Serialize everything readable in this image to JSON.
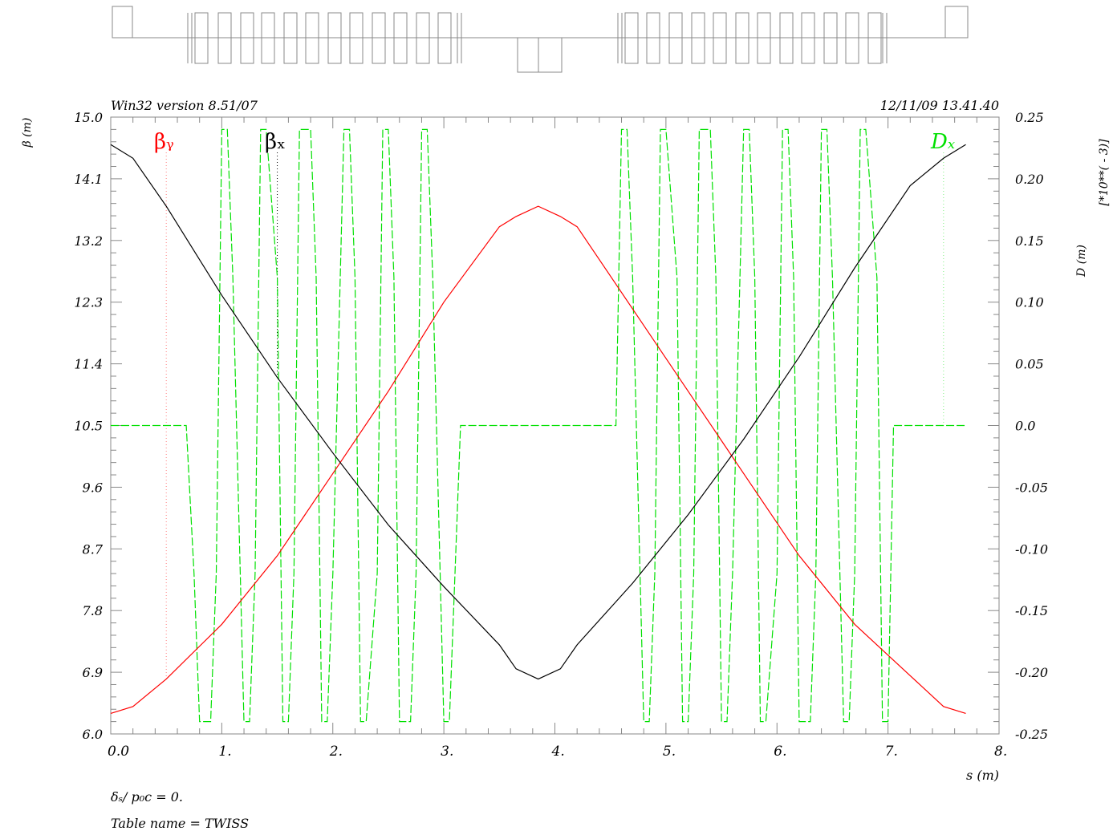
{
  "header": {
    "left": "Win32 version 8.51/07",
    "right": "12/11/09  13.41.40"
  },
  "footer": {
    "line1": "δₛ/ p₀c  =  0.",
    "line2": "Table name = TWISS"
  },
  "axis_labels": {
    "left": "β (m)",
    "right_d": "D (m)",
    "right_units": "[*10**( - 3)]",
    "x": "s (m)"
  },
  "legend": {
    "beta_y": "βᵧ",
    "beta_x": "βₓ",
    "d_x": "Dₓ"
  },
  "colors": {
    "beta_x": "#000000",
    "beta_y": "#ff0000",
    "d_x": "#00e000"
  },
  "chart_data": {
    "type": "line",
    "x_ticks": [
      "0.0",
      "1.",
      "2.",
      "3.",
      "4.",
      "5.",
      "6.",
      "7.",
      "8."
    ],
    "y_left_ticks": [
      "6.0",
      "6.9",
      "7.8",
      "8.7",
      "9.6",
      "10.5",
      "11.4",
      "12.3",
      "13.2",
      "14.1",
      "15.0"
    ],
    "y_right_ticks": [
      "-0.25",
      "-0.20",
      "-0.15",
      "-0.10",
      "-0.05",
      "0.0",
      "0.05",
      "0.10",
      "0.15",
      "0.20",
      "0.25"
    ],
    "xlim": [
      0,
      8
    ],
    "ylim_left": [
      6.0,
      15.0
    ],
    "ylim_right": [
      -0.25,
      0.25
    ],
    "series": [
      {
        "name": "βₓ",
        "axis": "left",
        "x": [
          0,
          0.2,
          0.5,
          1.0,
          1.5,
          2.0,
          2.5,
          3.0,
          3.5,
          3.65,
          3.85,
          4.05,
          4.2,
          4.7,
          5.2,
          5.7,
          6.2,
          6.7,
          7.2,
          7.5,
          7.7
        ],
        "y": [
          14.6,
          14.4,
          13.7,
          12.4,
          11.2,
          10.1,
          9.05,
          8.15,
          7.3,
          6.95,
          6.8,
          6.95,
          7.3,
          8.2,
          9.2,
          10.3,
          11.5,
          12.8,
          14.0,
          14.4,
          14.6
        ]
      },
      {
        "name": "βᵧ",
        "axis": "left",
        "x": [
          0,
          0.2,
          0.5,
          1.0,
          1.5,
          2.0,
          2.5,
          3.0,
          3.5,
          3.65,
          3.85,
          4.05,
          4.2,
          4.7,
          5.2,
          5.7,
          6.2,
          6.7,
          7.2,
          7.5,
          7.7
        ],
        "y": [
          6.3,
          6.4,
          6.8,
          7.6,
          8.6,
          9.8,
          11.0,
          12.3,
          13.4,
          13.55,
          13.7,
          13.55,
          13.4,
          12.2,
          11.0,
          9.8,
          8.6,
          7.6,
          6.85,
          6.4,
          6.3
        ]
      },
      {
        "name": "Dₓ",
        "axis": "right",
        "x": [
          0,
          0.68,
          0.75,
          0.8,
          0.9,
          0.95,
          1.0,
          1.05,
          1.1,
          1.2,
          1.25,
          1.3,
          1.35,
          1.4,
          1.5,
          1.55,
          1.6,
          1.65,
          1.7,
          1.8,
          1.85,
          1.9,
          1.95,
          2.0,
          2.1,
          2.15,
          2.2,
          2.25,
          2.3,
          2.4,
          2.45,
          2.5,
          2.55,
          2.6,
          2.7,
          2.75,
          2.8,
          2.85,
          2.9,
          3.0,
          3.05,
          3.1,
          3.15,
          3.6,
          4.2,
          4.55,
          4.6,
          4.65,
          4.7,
          4.8,
          4.85,
          4.9,
          4.95,
          5.0,
          5.1,
          5.15,
          5.2,
          5.25,
          5.3,
          5.4,
          5.45,
          5.5,
          5.55,
          5.6,
          5.7,
          5.75,
          5.8,
          5.85,
          5.9,
          6.0,
          6.05,
          6.1,
          6.15,
          6.2,
          6.3,
          6.35,
          6.4,
          6.45,
          6.5,
          6.6,
          6.65,
          6.7,
          6.75,
          6.8,
          6.9,
          6.95,
          7.0,
          7.05,
          7.7
        ],
        "y": [
          0.0,
          0.0,
          -0.12,
          -0.24,
          -0.24,
          -0.12,
          0.24,
          0.24,
          0.12,
          -0.24,
          -0.24,
          -0.12,
          0.24,
          0.24,
          0.12,
          -0.24,
          -0.24,
          -0.12,
          0.24,
          0.24,
          0.12,
          -0.24,
          -0.24,
          -0.12,
          0.24,
          0.24,
          0.12,
          -0.24,
          -0.24,
          -0.12,
          0.24,
          0.24,
          0.12,
          -0.24,
          -0.24,
          -0.12,
          0.24,
          0.24,
          0.12,
          -0.24,
          -0.24,
          -0.12,
          0.0,
          0.0,
          0.0,
          0.0,
          0.24,
          0.24,
          0.12,
          -0.24,
          -0.24,
          -0.12,
          0.24,
          0.24,
          0.12,
          -0.24,
          -0.24,
          -0.12,
          0.24,
          0.24,
          0.12,
          -0.24,
          -0.24,
          -0.12,
          0.24,
          0.24,
          0.12,
          -0.24,
          -0.24,
          -0.12,
          0.24,
          0.24,
          0.12,
          -0.24,
          -0.24,
          -0.12,
          0.24,
          0.24,
          0.12,
          -0.24,
          -0.24,
          -0.12,
          0.24,
          0.24,
          0.12,
          -0.24,
          -0.24,
          0.0,
          0.0
        ]
      }
    ]
  }
}
